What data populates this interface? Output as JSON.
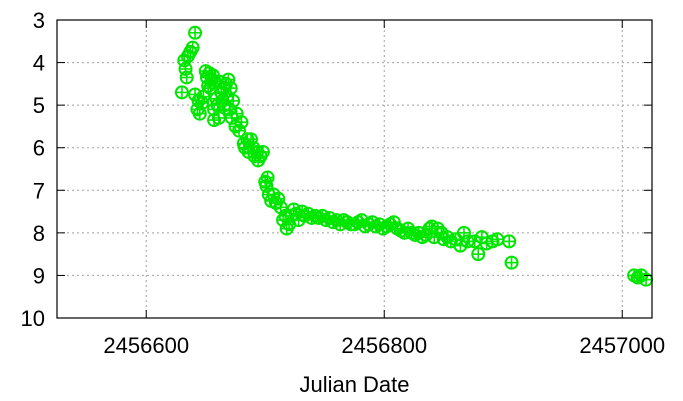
{
  "chart_data": {
    "type": "scatter",
    "title": "",
    "xlabel": "Julian Date",
    "ylabel": "",
    "xlim": [
      2456525,
      2457025
    ],
    "ylim": [
      3,
      10
    ],
    "y_reversed": true,
    "grid": true,
    "legend": "none",
    "x_ticks": [
      2456600,
      2456800,
      2457000
    ],
    "x_tick_labels": [
      "2456600",
      "2456800",
      "2457000"
    ],
    "y_ticks": [
      3,
      4,
      5,
      6,
      7,
      8,
      9,
      10
    ],
    "y_tick_labels": [
      "3",
      "4",
      "5",
      "6",
      "7",
      "8",
      "9",
      "10"
    ],
    "marker": "circle-plus",
    "colors": {
      "points": "#00e600",
      "grid": "#a0a0a0",
      "frame": "#000000"
    },
    "series": [
      {
        "points": [
          [
            2456630,
            4.7
          ],
          [
            2456632,
            3.95
          ],
          [
            2456633,
            4.15
          ],
          [
            2456634,
            4.35
          ],
          [
            2456635,
            3.85
          ],
          [
            2456637,
            3.75
          ],
          [
            2456639,
            3.65
          ],
          [
            2456641,
            3.3
          ],
          [
            2456641,
            4.75
          ],
          [
            2456643,
            5.1
          ],
          [
            2456644,
            4.9
          ],
          [
            2456645,
            5.2
          ],
          [
            2456647,
            4.95
          ],
          [
            2456648,
            4.8
          ],
          [
            2456650,
            4.2
          ],
          [
            2456651,
            4.35
          ],
          [
            2456652,
            4.55
          ],
          [
            2456653,
            4.25
          ],
          [
            2456654,
            4.6
          ],
          [
            2456655,
            4.4
          ],
          [
            2456656,
            4.3
          ],
          [
            2456657,
            5.1
          ],
          [
            2456657,
            5.35
          ],
          [
            2456658,
            4.5
          ],
          [
            2456659,
            4.85
          ],
          [
            2456660,
            5.0
          ],
          [
            2456661,
            5.3
          ],
          [
            2456662,
            4.45
          ],
          [
            2456663,
            4.7
          ],
          [
            2456664,
            4.9
          ],
          [
            2456665,
            4.6
          ],
          [
            2456666,
            5.0
          ],
          [
            2456667,
            4.5
          ],
          [
            2456668,
            4.8
          ],
          [
            2456669,
            4.4
          ],
          [
            2456670,
            5.1
          ],
          [
            2456671,
            4.6
          ],
          [
            2456672,
            5.3
          ],
          [
            2456673,
            4.9
          ],
          [
            2456675,
            5.5
          ],
          [
            2456676,
            5.2
          ],
          [
            2456678,
            5.6
          ],
          [
            2456680,
            5.4
          ],
          [
            2456682,
            5.9
          ],
          [
            2456683,
            6.0
          ],
          [
            2456685,
            5.8
          ],
          [
            2456686,
            6.1
          ],
          [
            2456688,
            5.8
          ],
          [
            2456690,
            6.0
          ],
          [
            2456691,
            6.2
          ],
          [
            2456693,
            6.1
          ],
          [
            2456694,
            6.3
          ],
          [
            2456696,
            6.2
          ],
          [
            2456698,
            6.1
          ],
          [
            2456700,
            6.8
          ],
          [
            2456701,
            6.9
          ],
          [
            2456702,
            6.7
          ],
          [
            2456703,
            7.1
          ],
          [
            2456705,
            7.25
          ],
          [
            2456707,
            7.1
          ],
          [
            2456709,
            7.3
          ],
          [
            2456711,
            7.2
          ],
          [
            2456713,
            7.4
          ],
          [
            2456715,
            7.7
          ],
          [
            2456717,
            7.6
          ],
          [
            2456718,
            7.9
          ],
          [
            2456720,
            7.8
          ],
          [
            2456722,
            7.6
          ],
          [
            2456724,
            7.45
          ],
          [
            2456726,
            7.55
          ],
          [
            2456728,
            7.7
          ],
          [
            2456731,
            7.5
          ],
          [
            2456733,
            7.6
          ],
          [
            2456736,
            7.55
          ],
          [
            2456739,
            7.65
          ],
          [
            2456742,
            7.6
          ],
          [
            2456745,
            7.65
          ],
          [
            2456748,
            7.6
          ],
          [
            2456751,
            7.7
          ],
          [
            2456754,
            7.65
          ],
          [
            2456757,
            7.75
          ],
          [
            2456760,
            7.7
          ],
          [
            2456763,
            7.8
          ],
          [
            2456766,
            7.7
          ],
          [
            2456769,
            7.75
          ],
          [
            2456772,
            7.8
          ],
          [
            2456775,
            7.8
          ],
          [
            2456778,
            7.75
          ],
          [
            2456781,
            7.7
          ],
          [
            2456784,
            7.85
          ],
          [
            2456787,
            7.8
          ],
          [
            2456790,
            7.75
          ],
          [
            2456793,
            7.85
          ],
          [
            2456796,
            7.8
          ],
          [
            2456799,
            7.9
          ],
          [
            2456802,
            7.85
          ],
          [
            2456805,
            7.8
          ],
          [
            2456808,
            7.75
          ],
          [
            2456811,
            7.9
          ],
          [
            2456814,
            7.95
          ],
          [
            2456817,
            8.0
          ],
          [
            2456820,
            7.9
          ],
          [
            2456823,
            8.0
          ],
          [
            2456826,
            8.05
          ],
          [
            2456829,
            8.0
          ],
          [
            2456832,
            8.1
          ],
          [
            2456835,
            8.05
          ],
          [
            2456838,
            7.9
          ],
          [
            2456840,
            7.85
          ],
          [
            2456842,
            8.1
          ],
          [
            2456845,
            7.9
          ],
          [
            2456848,
            8.0
          ],
          [
            2456850,
            8.15
          ],
          [
            2456853,
            8.1
          ],
          [
            2456856,
            8.2
          ],
          [
            2456860,
            8.15
          ],
          [
            2456864,
            8.3
          ],
          [
            2456867,
            8.0
          ],
          [
            2456870,
            8.2
          ],
          [
            2456876,
            8.2
          ],
          [
            2456879,
            8.5
          ],
          [
            2456882,
            8.1
          ],
          [
            2456886,
            8.25
          ],
          [
            2456891,
            8.2
          ],
          [
            2456895,
            8.15
          ],
          [
            2456905,
            8.2
          ],
          [
            2456907,
            8.7
          ],
          [
            2457010,
            9.0
          ],
          [
            2457013,
            9.05
          ],
          [
            2457016,
            9.0
          ],
          [
            2457020,
            9.1
          ]
        ]
      }
    ]
  }
}
